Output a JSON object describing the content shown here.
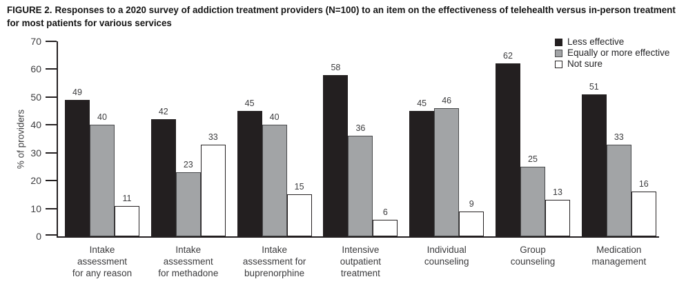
{
  "figure": {
    "label": "FIGURE 2.",
    "title": "Responses to a 2020 survey of addiction treatment providers (N=100) to an item on the effectiveness of telehealth versus in-person treatment for most patients for various services"
  },
  "chart_data": {
    "type": "bar",
    "title": "FIGURE 2. Responses to a 2020 survey of addiction treatment providers (N=100) to an item on the effectiveness of telehealth versus in-person treatment for most patients for various services",
    "xlabel": "",
    "ylabel": "% of providers",
    "ylim": [
      0,
      70
    ],
    "yticks": [
      0,
      10,
      20,
      30,
      40,
      50,
      60,
      70
    ],
    "grid": false,
    "legend_position": "top-right",
    "categories": [
      "Intake assessment for any reason",
      "Intake assessment for methadone",
      "Intake assessment for buprenorphine",
      "Intensive outpatient treatment",
      "Individual counseling",
      "Group counseling",
      "Medication management"
    ],
    "category_label_lines": [
      [
        "Intake",
        "assessment",
        "for any reason"
      ],
      [
        "Intake",
        "assessment",
        "for methadone"
      ],
      [
        "Intake",
        "assessment for",
        "buprenorphine"
      ],
      [
        "Intensive",
        "outpatient",
        "treatment"
      ],
      [
        "Individual",
        "counseling"
      ],
      [
        "Group",
        "counseling"
      ],
      [
        "Medication",
        "management"
      ]
    ],
    "series": [
      {
        "name": "Less effective",
        "color": "#231f20",
        "border_color": "#231f20",
        "values": [
          49,
          42,
          45,
          58,
          45,
          62,
          51
        ]
      },
      {
        "name": "Equally or more effective",
        "color": "#a2a4a6",
        "border_color": "#48494b",
        "values": [
          40,
          23,
          40,
          36,
          46,
          25,
          33
        ]
      },
      {
        "name": "Not sure",
        "color": "#ffffff",
        "border_color": "#231f20",
        "values": [
          11,
          33,
          15,
          6,
          9,
          13,
          16
        ]
      }
    ]
  }
}
